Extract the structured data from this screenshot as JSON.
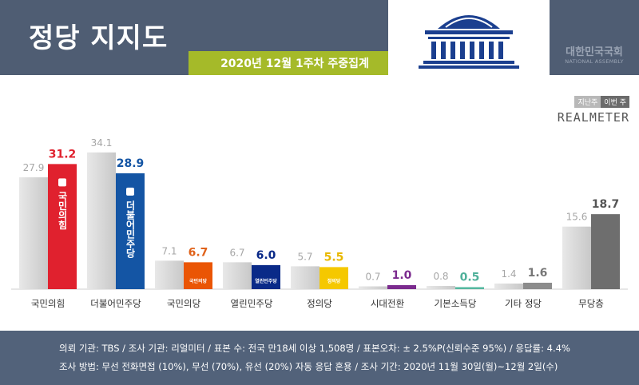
{
  "header": {
    "title": "정당 지지도",
    "subtitle": "2020년 12월 1주차 주중집계",
    "assembly_ko": "대한민국국회",
    "assembly_en": "NATIONAL ASSEMBLY"
  },
  "legend": {
    "prev_label": "지난주",
    "curr_label": "이번 주"
  },
  "brand": "REALMETER",
  "chart_data": {
    "type": "bar",
    "categories": [
      "국민의힘",
      "더불어민주당",
      "국민의당",
      "열린민주당",
      "정의당",
      "시대전환",
      "기본소득당",
      "기타 정당",
      "무당층"
    ],
    "series": [
      {
        "name": "지난주",
        "values": [
          27.9,
          34.1,
          7.1,
          6.7,
          5.7,
          0.7,
          0.8,
          1.4,
          15.6
        ]
      },
      {
        "name": "이번 주",
        "values": [
          31.2,
          28.9,
          6.7,
          6.0,
          5.5,
          1.0,
          0.5,
          1.6,
          18.7
        ]
      }
    ],
    "current_colors": [
      "#e0212e",
      "#1455a4",
      "#ea5504",
      "#0a2a88",
      "#f5c800",
      "#7b2b8e",
      "#55b8a0",
      "#8c8c8c",
      "#6e6e6e"
    ],
    "current_label_colors": [
      "#e0212e",
      "#1455a4",
      "#e0621a",
      "#0a2a88",
      "#e8b800",
      "#7b2b8e",
      "#4fb09a",
      "#777777",
      "#555555"
    ],
    "bar_logos": [
      "국민의힘",
      "더불어민주당",
      "국민의당",
      "열린민주당",
      "정의당",
      "",
      "",
      "",
      ""
    ],
    "prev_color": "#d6d6d6",
    "prev_label_color": "#a6a6a6",
    "ylim": [
      0,
      40
    ]
  },
  "footer": {
    "line1": "의뢰 기관:  TBS / 조사 기관:  리얼미터 / 표본 수:  전국 만18세 이상 1,508명  / 표본오차:  ± 2.5%P(신뢰수준  95%) / 응답률:   4.4%",
    "line2": "조사 방법:  무선 전화면접 (10%), 무선 (70%), 유선 (20%)  자동 응답 혼용  / 조사 기간:  2020년 11월 30일(월)~12월  2일(수)"
  }
}
